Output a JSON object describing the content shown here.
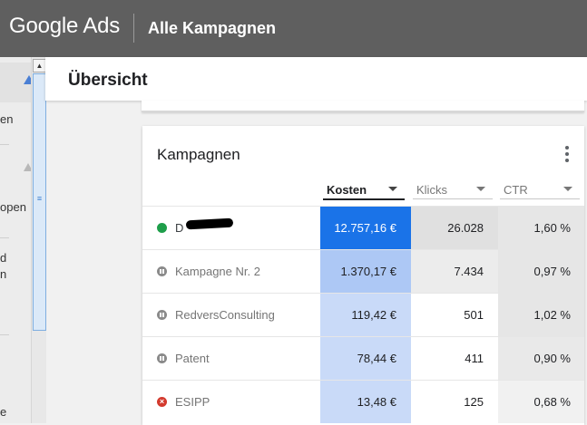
{
  "header": {
    "logo": "Google Ads",
    "section": "Alle Kampagnen"
  },
  "leftnav": {
    "fragments": [
      "en",
      "open",
      "d",
      "n",
      "e"
    ]
  },
  "overview": {
    "title": "Übersicht"
  },
  "campaigns": {
    "title": "Kampagnen",
    "columns": [
      {
        "label": "Kosten",
        "sorted": true
      },
      {
        "label": "Klicks",
        "sorted": false
      },
      {
        "label": "CTR",
        "sorted": false
      }
    ],
    "rows": [
      {
        "name": "D",
        "status": "active",
        "cost": "12.757,16 €",
        "clicks": "26.028",
        "ctr": "1,60 %"
      },
      {
        "name": "Kampagne Nr. 2",
        "status": "paused",
        "cost": "1.370,17 €",
        "clicks": "7.434",
        "ctr": "0,97 %"
      },
      {
        "name": "RedversConsulting",
        "status": "paused",
        "cost": "119,42 €",
        "clicks": "501",
        "ctr": "1,02 %"
      },
      {
        "name": "Patent",
        "status": "paused",
        "cost": "78,44 €",
        "clicks": "411",
        "ctr": "0,90 %"
      },
      {
        "name": "ESIPP",
        "status": "removed",
        "cost": "13,48 €",
        "clicks": "125",
        "ctr": "0,68 %"
      }
    ]
  },
  "colors": {
    "topbar": "#5f5f5f",
    "cost_dark": "#1a73e8",
    "cost_mid": "#adc8f5",
    "cost_light": "#c9daf8",
    "clicks_dark": "#e0e0e0",
    "clicks_mid": "#ececec",
    "ctr_dark": "#e6e6e6",
    "ctr_light": "#f1f1f1"
  }
}
